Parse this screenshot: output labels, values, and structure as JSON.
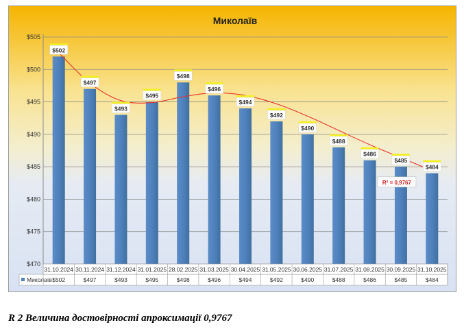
{
  "chart_data": {
    "type": "bar",
    "title": "Миколаїв",
    "categories": [
      "31.10.2024",
      "30.11.2024",
      "31.12.2024",
      "31.01.2025",
      "28.02.2025",
      "31.03.2025",
      "30.04.2025",
      "31.05.2025",
      "30.06.2025",
      "31.07.2025",
      "31.08.2025",
      "30.09.2025",
      "31.10.2025"
    ],
    "series": [
      {
        "name": "Миколаїв",
        "values": [
          502,
          497,
          493,
          495,
          498,
          496,
          494,
          492,
          490,
          488,
          486,
          485,
          484
        ],
        "color": "#4f81bd"
      }
    ],
    "data_labels": [
      "$502",
      "$497",
      "$493",
      "$495",
      "$498",
      "$496",
      "$494",
      "$492",
      "$490",
      "$488",
      "$486",
      "$485",
      "$484"
    ],
    "y_ticks": [
      470,
      475,
      480,
      485,
      490,
      495,
      500,
      505
    ],
    "y_tick_labels": [
      "$470",
      "$475",
      "$480",
      "$485",
      "$490",
      "$495",
      "$500",
      "$505"
    ],
    "ylim": [
      470,
      505
    ],
    "grid": true,
    "legend": "data-table",
    "trendline": {
      "type": "polynomial",
      "label": "R² = 0,9767",
      "color": "#e8322a",
      "points": [
        502.6,
        497.9,
        495.2,
        494.9,
        495.8,
        496.4,
        496.0,
        494.7,
        492.8,
        490.6,
        488.4,
        486.4,
        484.4
      ]
    },
    "colors": {
      "bar": "#4f81bd",
      "trend": "#e8322a",
      "label_tab": "#f4f022",
      "bg_top": "#f5b400",
      "bg_bottom": "#dbe5f5"
    }
  },
  "caption": "R 2 Величина достовірності апроксимації 0,9767"
}
